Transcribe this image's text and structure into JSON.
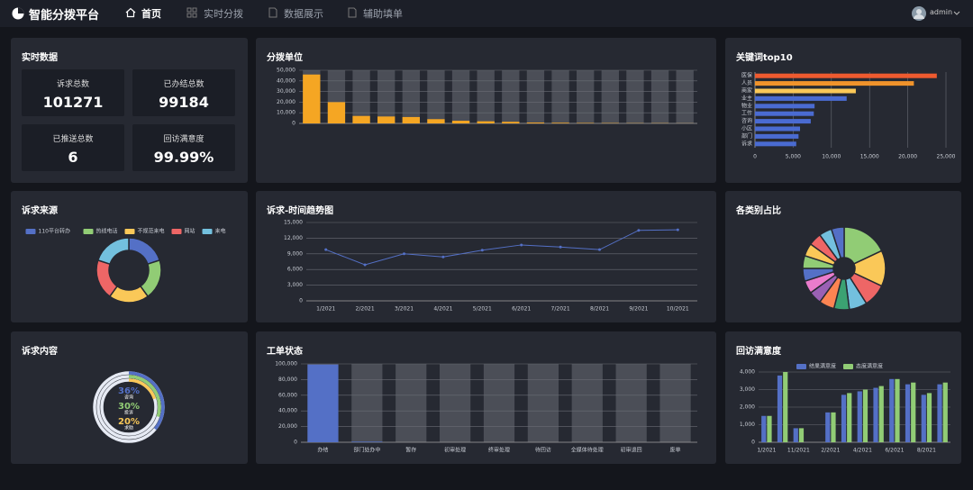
{
  "header": {
    "title": "智能分拨平台",
    "nav": [
      "首页",
      "实时分拨",
      "数据展示",
      "辅助填单"
    ],
    "user": "admin"
  },
  "stats": {
    "title": "实时数据",
    "items": [
      {
        "label": "诉求总数",
        "value": 101271
      },
      {
        "label": "已办结总数",
        "value": 99184
      },
      {
        "label": "已推送总数",
        "value": 6
      },
      {
        "label": "回访满意度",
        "value": 99.99,
        "value_label": "99.99%"
      }
    ]
  },
  "chart_data": [
    {
      "type": "bar",
      "title": "分拨单位",
      "categories": [
        null,
        null,
        null,
        null,
        null,
        null,
        null,
        null,
        null,
        null,
        null,
        null,
        null,
        null,
        null,
        null
      ],
      "values": [
        46000,
        20000,
        7000,
        6500,
        6000,
        4000,
        2500,
        2000,
        1500,
        800,
        600,
        400,
        300,
        200,
        200,
        100
      ],
      "color": "#f5a623",
      "background": true,
      "ylim": [
        0,
        50000
      ],
      "yticks": [
        0,
        {
          "value": 10000,
          "label": "10,000"
        },
        {
          "value": 20000,
          "label": "20,000"
        },
        {
          "value": 30000,
          "label": "30,000"
        },
        {
          "value": 40000,
          "label": "40,000"
        },
        {
          "value": 50000,
          "label": "50,000"
        }
      ],
      "grid": true
    },
    {
      "type": "barh",
      "title": "关键词top10",
      "categories": [
        "医保",
        "人员",
        "商家",
        "业主",
        "物业",
        "工作",
        "咨询",
        "小区",
        "部门",
        "诉求"
      ],
      "values": [
        23800,
        20800,
        13200,
        12000,
        7800,
        7700,
        7300,
        5900,
        5700,
        5400
      ],
      "colors": [
        "#ee5a2f",
        "#f0932b",
        "#fac858",
        "#4a6bd1",
        "#4a6bd1",
        "#4a6bd1",
        "#4a6bd1",
        "#4a6bd1",
        "#4a6bd1",
        "#4a6bd1"
      ],
      "xlim": [
        0,
        25000
      ],
      "xticks": [
        0,
        {
          "value": 5000,
          "label": "5,000"
        },
        {
          "value": 10000,
          "label": "10,000"
        },
        {
          "value": 15000,
          "label": "15,000"
        },
        {
          "value": 20000,
          "label": "20,000"
        },
        {
          "value": 25000,
          "label": "25,000"
        }
      ],
      "grid": true
    },
    {
      "type": "donut",
      "title": "诉求来源",
      "categories": [
        "110平台转办",
        "热线电话",
        "不规范来电",
        "网站",
        "来电"
      ],
      "values": [
        20,
        20,
        20,
        20,
        20
      ],
      "colors": [
        "#5470c6",
        "#91cc75",
        "#fac858",
        "#ee6666",
        "#73c0de"
      ],
      "legend": "top"
    },
    {
      "type": "line",
      "title": "诉求-时间趋势图",
      "categories": [
        "1/2021",
        "2/2021",
        "3/2021",
        "4/2021",
        "5/2021",
        "6/2021",
        "7/2021",
        "8/2021",
        "9/2021",
        "10/2021"
      ],
      "values": [
        9800,
        6900,
        9000,
        8400,
        9700,
        10700,
        10300,
        9800,
        13500,
        13600
      ],
      "color": "#5470c6",
      "ylim": [
        0,
        15000
      ],
      "yticks": [
        0,
        {
          "value": 3000,
          "label": "3,000"
        },
        {
          "value": 6000,
          "label": "6,000"
        },
        {
          "value": 9000,
          "label": "9,000"
        },
        {
          "value": 12000,
          "label": "12,000"
        },
        {
          "value": 15000,
          "label": "15,000"
        }
      ],
      "grid": true
    },
    {
      "type": "donut",
      "title": "各类别占比",
      "categories": [
        null,
        null,
        null,
        null,
        null,
        null,
        null,
        null,
        null,
        null,
        null,
        null,
        null,
        null
      ],
      "values": [
        18,
        14,
        9,
        7,
        6,
        6,
        5,
        5,
        5,
        5,
        5,
        5,
        5,
        5
      ],
      "colors": [
        "#91cc75",
        "#fac858",
        "#ee6666",
        "#73c0de",
        "#3ba272",
        "#fc8452",
        "#9a60b4",
        "#ea7ccc",
        "#5470c6",
        "#91cc75",
        "#fac858",
        "#ee6666",
        "#73c0de",
        "#5470c6"
      ]
    },
    {
      "type": "radial",
      "title": "诉求内容",
      "categories": [
        "咨询",
        "投诉",
        "求助"
      ],
      "values": [
        36,
        30,
        20
      ],
      "value_labels": [
        "36%",
        "30%",
        "20%"
      ],
      "colors": [
        "#5470c6",
        "#91cc75",
        "#fac858"
      ],
      "ylim": [
        0,
        100
      ]
    },
    {
      "type": "bar",
      "title": "工单状态",
      "categories": [
        "办结",
        "部门处办中",
        "暂存",
        "初审处理",
        "终审处理",
        "待回访",
        "全媒体待处理",
        "初审退回",
        "废单"
      ],
      "values": [
        99184,
        800,
        0,
        0,
        0,
        0,
        0,
        0,
        0
      ],
      "color": "#5470c6",
      "background": true,
      "ylim": [
        0,
        100000
      ],
      "yticks": [
        0,
        {
          "value": 20000,
          "label": "20,000"
        },
        {
          "value": 40000,
          "label": "40,000"
        },
        {
          "value": 60000,
          "label": "60,000"
        },
        {
          "value": 80000,
          "label": "80,000"
        },
        {
          "value": 100000,
          "label": "100,000"
        }
      ],
      "grid": true
    },
    {
      "type": "bar",
      "title": "回访满意度",
      "categories": [
        "1/2021",
        null,
        "11/2021",
        null,
        "2/2021",
        null,
        "4/2021",
        null,
        "6/2021",
        null,
        "8/2021",
        null
      ],
      "series": [
        {
          "name": "结果满意度",
          "color": "#5470c6",
          "values": [
            1500,
            3800,
            800,
            0,
            1700,
            2700,
            2900,
            3100,
            3600,
            3300,
            2700,
            3300
          ]
        },
        {
          "name": "态度满意度",
          "color": "#91cc75",
          "values": [
            1500,
            4000,
            800,
            0,
            1700,
            2800,
            3000,
            3200,
            3600,
            3400,
            2800,
            3400
          ]
        }
      ],
      "ylim": [
        0,
        4000
      ],
      "yticks": [
        0,
        {
          "value": 1000,
          "label": "1,000"
        },
        {
          "value": 2000,
          "label": "2,000"
        },
        {
          "value": 3000,
          "label": "3,000"
        },
        {
          "value": 4000,
          "label": "4,000"
        }
      ],
      "grid": true,
      "legend": "top"
    }
  ]
}
